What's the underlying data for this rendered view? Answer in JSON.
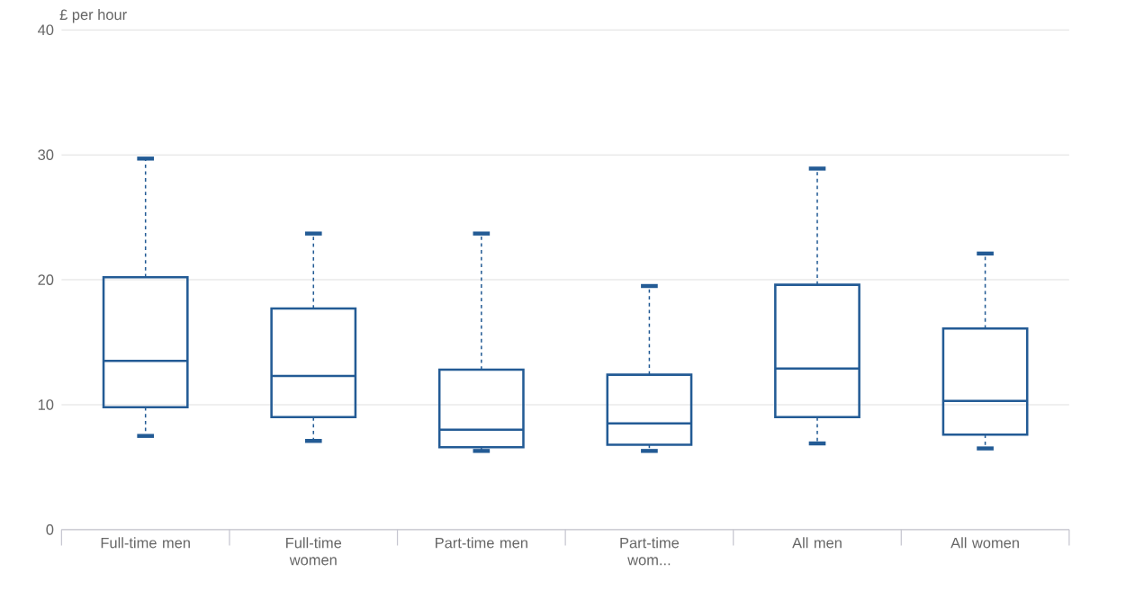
{
  "chart_data": {
    "type": "box",
    "ylabel": "£ per hour",
    "categories": [
      "Full-time men",
      "Full-time women",
      "Part-time men",
      "Part-time wom...",
      "All men",
      "All women"
    ],
    "color": "#235b95",
    "ylim": [
      0,
      40
    ],
    "yticks": [
      0,
      10,
      20,
      30,
      40
    ],
    "grid": "y",
    "line_style": "dashed",
    "boxes": [
      {
        "low": 7.5,
        "q1": 9.8,
        "median": 13.5,
        "q3": 20.2,
        "high": 29.7
      },
      {
        "low": 7.1,
        "q1": 9.0,
        "median": 12.3,
        "q3": 17.7,
        "high": 23.7
      },
      {
        "low": 6.3,
        "q1": 6.6,
        "median": 8.0,
        "q3": 12.8,
        "high": 23.7
      },
      {
        "low": 6.3,
        "q1": 6.8,
        "median": 8.5,
        "q3": 12.4,
        "high": 19.5
      },
      {
        "low": 6.9,
        "q1": 9.0,
        "median": 12.9,
        "q3": 19.6,
        "high": 28.9
      },
      {
        "low": 6.5,
        "q1": 7.6,
        "median": 10.3,
        "q3": 16.1,
        "high": 22.1
      }
    ]
  }
}
